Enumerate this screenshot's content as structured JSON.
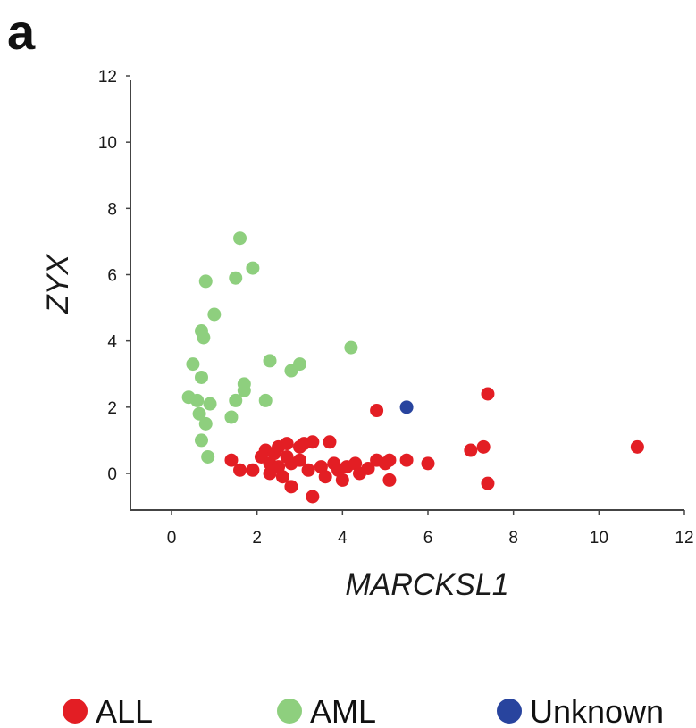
{
  "panel_label": "a",
  "chart_data": {
    "type": "scatter",
    "xlabel": "MARCKSL1",
    "ylabel": "ZYX",
    "xlim": [
      -1,
      12
    ],
    "ylim": [
      -1,
      12
    ],
    "x_ticks": [
      0,
      2,
      4,
      6,
      8,
      10,
      12
    ],
    "y_ticks": [
      0,
      2,
      4,
      6,
      8,
      10,
      12
    ],
    "grid": false,
    "legend_position": "bottom",
    "series": [
      {
        "name": "ALL",
        "color": "#e31e24",
        "points": [
          [
            1.4,
            0.4
          ],
          [
            1.6,
            0.1
          ],
          [
            1.9,
            0.1
          ],
          [
            2.1,
            0.5
          ],
          [
            2.2,
            0.7
          ],
          [
            2.3,
            0.3
          ],
          [
            2.3,
            0.0
          ],
          [
            2.4,
            0.6
          ],
          [
            2.5,
            0.8
          ],
          [
            2.5,
            0.2
          ],
          [
            2.6,
            -0.1
          ],
          [
            2.7,
            0.9
          ],
          [
            2.7,
            0.5
          ],
          [
            2.8,
            0.3
          ],
          [
            2.8,
            -0.4
          ],
          [
            3.0,
            0.8
          ],
          [
            3.0,
            0.4
          ],
          [
            3.1,
            0.9
          ],
          [
            3.2,
            0.1
          ],
          [
            3.3,
            0.95
          ],
          [
            3.3,
            -0.7
          ],
          [
            3.5,
            0.2
          ],
          [
            3.6,
            -0.1
          ],
          [
            3.7,
            0.95
          ],
          [
            3.8,
            0.3
          ],
          [
            3.9,
            0.1
          ],
          [
            4.0,
            -0.2
          ],
          [
            4.1,
            0.2
          ],
          [
            4.3,
            0.3
          ],
          [
            4.4,
            0.0
          ],
          [
            4.6,
            0.15
          ],
          [
            4.8,
            0.4
          ],
          [
            4.8,
            1.9
          ],
          [
            5.0,
            0.3
          ],
          [
            5.1,
            -0.2
          ],
          [
            5.1,
            0.4
          ],
          [
            5.5,
            0.4
          ],
          [
            6.0,
            0.3
          ],
          [
            7.0,
            0.7
          ],
          [
            7.3,
            0.8
          ],
          [
            7.4,
            2.4
          ],
          [
            7.4,
            -0.3
          ],
          [
            10.9,
            0.8
          ]
        ]
      },
      {
        "name": "AML",
        "color": "#8ecf7e",
        "points": [
          [
            0.4,
            2.3
          ],
          [
            0.5,
            3.3
          ],
          [
            0.6,
            2.2
          ],
          [
            0.65,
            1.8
          ],
          [
            0.7,
            2.9
          ],
          [
            0.7,
            1.0
          ],
          [
            0.7,
            4.3
          ],
          [
            0.75,
            4.1
          ],
          [
            0.8,
            1.5
          ],
          [
            0.8,
            5.8
          ],
          [
            0.85,
            0.5
          ],
          [
            0.9,
            2.1
          ],
          [
            1.0,
            4.8
          ],
          [
            1.4,
            1.7
          ],
          [
            1.5,
            5.9
          ],
          [
            1.5,
            2.2
          ],
          [
            1.6,
            7.1
          ],
          [
            1.7,
            2.7
          ],
          [
            1.7,
            2.5
          ],
          [
            1.9,
            6.2
          ],
          [
            2.2,
            2.2
          ],
          [
            2.3,
            3.4
          ],
          [
            2.8,
            3.1
          ],
          [
            3.0,
            3.3
          ],
          [
            4.2,
            3.8
          ]
        ]
      },
      {
        "name": "Unknown",
        "color": "#28449e",
        "points": [
          [
            5.5,
            2.0
          ]
        ]
      }
    ]
  }
}
